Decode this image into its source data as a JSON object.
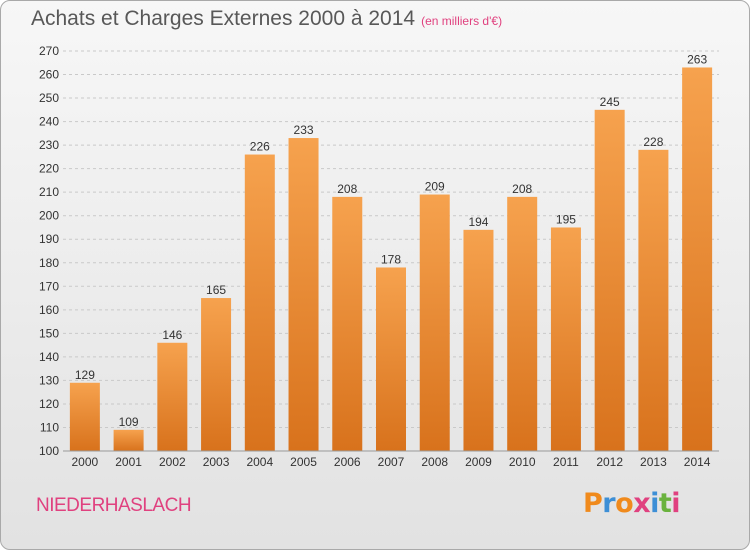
{
  "chart_data": {
    "type": "bar",
    "title": "Achats et Charges Externes 2000 à 2014",
    "subtitle": "(en milliers d'€)",
    "categories": [
      "2000",
      "2001",
      "2002",
      "2003",
      "2004",
      "2005",
      "2006",
      "2007",
      "2008",
      "2009",
      "2010",
      "2011",
      "2012",
      "2013",
      "2014"
    ],
    "values": [
      129,
      109,
      146,
      165,
      226,
      233,
      208,
      178,
      209,
      194,
      208,
      195,
      245,
      228,
      263
    ],
    "ylim": [
      100,
      270
    ],
    "yticks": [
      100,
      110,
      120,
      130,
      140,
      150,
      160,
      170,
      180,
      190,
      200,
      210,
      220,
      230,
      240,
      250,
      260,
      270
    ],
    "grid": "horizontal dashed",
    "colors": {
      "bar_top": "#f6a24e",
      "bar_bottom": "#d8721c",
      "grid": "#c9c9c9",
      "text": "#333333"
    }
  },
  "footer": {
    "commune": "NIEDERHASLACH",
    "logo_letters": [
      "P",
      "r",
      "o",
      "x",
      "i",
      "t",
      "i"
    ],
    "logo_colors": [
      "#f08a1c",
      "#3d8fd6",
      "#f08a1c",
      "#e0417f",
      "#3d8fd6",
      "#6ab23e",
      "#e0417f"
    ]
  }
}
